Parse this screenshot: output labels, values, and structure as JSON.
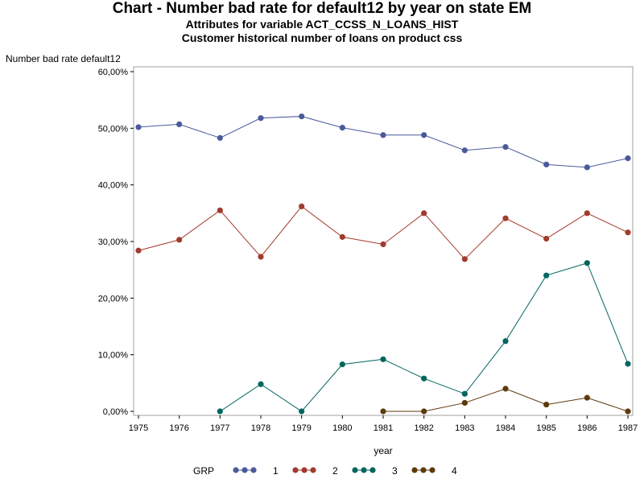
{
  "title": "Chart - Number bad rate for default12 by year on state EM",
  "subtitle1": "Attributes for variable ACT_CCSS_N_LOANS_HIST",
  "subtitle2": "Customer historical number of loans on product css",
  "chart_data": {
    "type": "line",
    "ylabel": "Number bad rate default12",
    "xlabel": "year",
    "ylim": [
      0,
      60
    ],
    "yticks": [
      0,
      10,
      20,
      30,
      40,
      50,
      60
    ],
    "ytick_labels": [
      "0,00%",
      "10,00%",
      "20,00%",
      "30,00%",
      "40,00%",
      "50,00%",
      "60,00%"
    ],
    "x": [
      1975,
      1976,
      1977,
      1978,
      1979,
      1980,
      1981,
      1982,
      1983,
      1984,
      1985,
      1986,
      1987
    ],
    "legend_title": "GRP",
    "legend_position": "bottom",
    "grid": false,
    "series": [
      {
        "name": "1",
        "color": "#4a5a9b",
        "values": [
          50.2,
          50.7,
          48.3,
          51.8,
          52.1,
          50.1,
          48.8,
          48.8,
          46.1,
          46.7,
          43.6,
          43.1,
          44.7
        ]
      },
      {
        "name": "2",
        "color": "#a23a2e",
        "values": [
          28.4,
          30.3,
          35.5,
          27.3,
          36.2,
          30.8,
          29.5,
          35.0,
          26.9,
          34.1,
          30.5,
          35.0,
          31.6
        ]
      },
      {
        "name": "3",
        "color": "#00665e",
        "values": [
          null,
          null,
          0.0,
          4.8,
          0.0,
          8.3,
          9.2,
          5.8,
          3.1,
          12.4,
          24.0,
          26.2,
          8.4
        ]
      },
      {
        "name": "4",
        "color": "#5c3a0a",
        "values": [
          null,
          null,
          null,
          null,
          null,
          null,
          0.0,
          0.0,
          1.5,
          4.0,
          1.2,
          2.4,
          0.0
        ]
      }
    ]
  }
}
